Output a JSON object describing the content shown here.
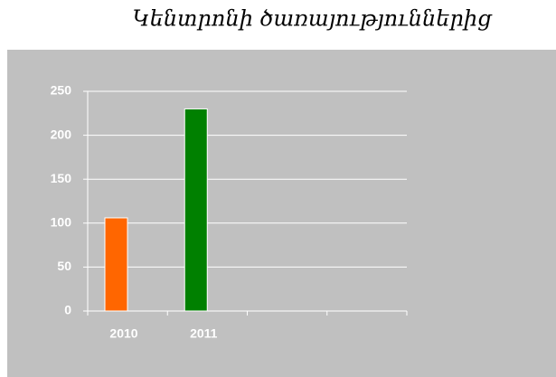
{
  "chart_data": {
    "type": "bar",
    "title": "Կենտրոնի ծառայություններից",
    "categories": [
      "2010",
      "2011",
      null,
      null
    ],
    "values": [
      106,
      230,
      null,
      null
    ],
    "colors": [
      "#ff6600",
      "#008000",
      null,
      null
    ],
    "ylim": [
      0,
      250
    ],
    "yticks": [
      0,
      50,
      100,
      150,
      200,
      250
    ],
    "grid": true
  }
}
